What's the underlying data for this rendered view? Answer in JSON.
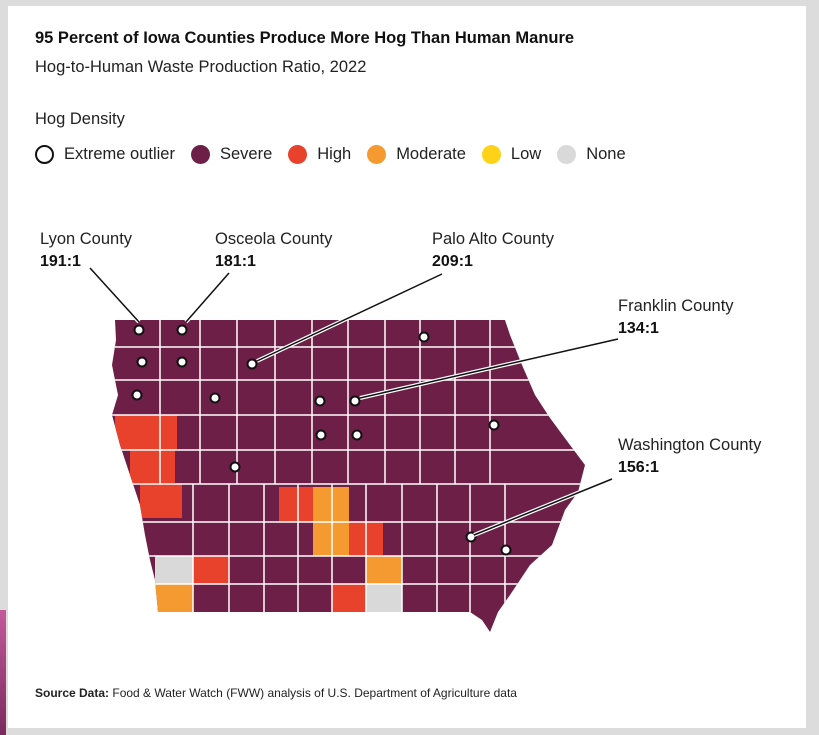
{
  "title": "95 Percent of Iowa Counties Produce More Hog Than Human Manure",
  "subtitle": "Hog-to-Human Waste Production Ratio, 2022",
  "legend": {
    "title": "Hog Density",
    "items": [
      {
        "label": "Extreme outlier",
        "color": "#ffffff",
        "outline": true
      },
      {
        "label": "Severe",
        "color": "#6e1f47"
      },
      {
        "label": "High",
        "color": "#e8412c"
      },
      {
        "label": "Moderate",
        "color": "#f59a30"
      },
      {
        "label": "Low",
        "color": "#ffd21a"
      },
      {
        "label": "None",
        "color": "#d9d9d9"
      }
    ]
  },
  "callouts": [
    {
      "name": "Lyon County",
      "ratio": "191:1"
    },
    {
      "name": "Osceola County",
      "ratio": "181:1"
    },
    {
      "name": "Palo Alto County",
      "ratio": "209:1"
    },
    {
      "name": "Franklin County",
      "ratio": "134:1"
    },
    {
      "name": "Washington County",
      "ratio": "156:1"
    }
  ],
  "source": {
    "label": "Source Data:",
    "text": "Food & Water Watch (FWW) analysis of U.S. Department of Agriculture data"
  },
  "colors": {
    "severe": "#6e1f47",
    "high": "#e8412c",
    "moderate": "#f59a30",
    "low": "#ffd21a",
    "none": "#d9d9d9",
    "border": "#ffffff"
  }
}
